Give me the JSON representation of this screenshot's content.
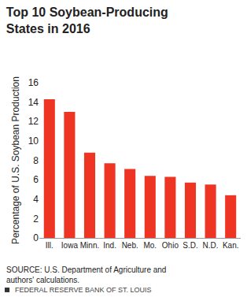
{
  "chart_data": {
    "type": "bar",
    "title": "Top 10 Soybean-Producing States in 2016",
    "ylabel": "Percentage of U.S. Soybean Production",
    "categories": [
      "Ill.",
      "Iowa",
      "Minn.",
      "Ind.",
      "Neb.",
      "Mo.",
      "Ohio",
      "S.D.",
      "N.D.",
      "Kan."
    ],
    "values": [
      14.3,
      13.0,
      8.8,
      7.7,
      7.1,
      6.4,
      6.3,
      5.7,
      5.5,
      4.4
    ],
    "color": "#ee3524",
    "ylim": [
      0,
      16
    ],
    "yticks": [
      0,
      2,
      4,
      6,
      8,
      10,
      12,
      14,
      16
    ],
    "grid": false,
    "annotations": [
      "SOURCE: U.S. Department of Agriculture and authors' calculations.",
      "FEDERAL RESERVE BANK OF ST. LOUIS"
    ]
  }
}
